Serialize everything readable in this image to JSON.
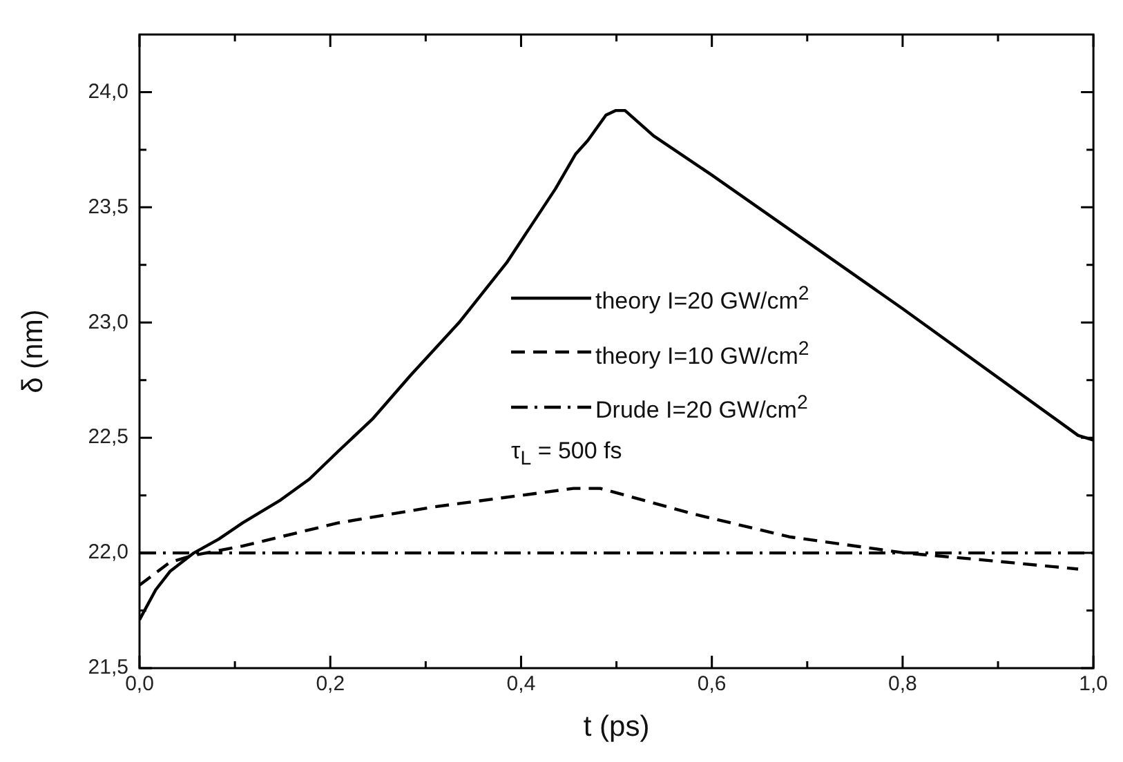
{
  "chart_data": {
    "type": "line",
    "xlabel": "t (ps)",
    "ylabel": "δ (nm)",
    "xlim": [
      0,
      1
    ],
    "ylim": [
      21.5,
      24.25
    ],
    "xticks": [
      {
        "value": 0,
        "label": "0,0"
      },
      {
        "value": 0.1,
        "label": null
      },
      {
        "value": 0.2,
        "label": "0,2"
      },
      {
        "value": 0.3,
        "label": null
      },
      {
        "value": 0.4,
        "label": "0,4"
      },
      {
        "value": 0.5,
        "label": null
      },
      {
        "value": 0.6,
        "label": "0,6"
      },
      {
        "value": 0.7,
        "label": null
      },
      {
        "value": 0.8,
        "label": "0,8"
      },
      {
        "value": 0.9,
        "label": null
      },
      {
        "value": 1,
        "label": "1,0"
      }
    ],
    "yticks": [
      {
        "value": 21.5,
        "label": "21,5"
      },
      {
        "value": 21.75,
        "label": null
      },
      {
        "value": 22,
        "label": "22,0"
      },
      {
        "value": 22.25,
        "label": null
      },
      {
        "value": 22.5,
        "label": "22,5"
      },
      {
        "value": 22.75,
        "label": null
      },
      {
        "value": 23,
        "label": "23,0"
      },
      {
        "value": 23.25,
        "label": null
      },
      {
        "value": 23.5,
        "label": "23,5"
      },
      {
        "value": 23.75,
        "label": null
      },
      {
        "value": 24,
        "label": "24,0"
      }
    ],
    "grid": false,
    "legend": "center",
    "marker": "none",
    "annotations": [
      "τ$_{L}$ = 500 fs"
    ],
    "series": [
      {
        "name": "theory I=20 GW/cm$^{2}$",
        "color": "#000000",
        "line_style": "solid",
        "x": [
          0,
          0.017,
          0.032,
          0.057,
          0.083,
          0.108,
          0.148,
          0.178,
          0.208,
          0.244,
          0.284,
          0.335,
          0.385,
          0.436,
          0.457,
          0.47,
          0.489,
          0.499,
          0.509,
          0.539,
          0.6,
          0.8,
          0.984,
          1
        ],
        "values": [
          21.71,
          21.84,
          21.92,
          22.0,
          22.06,
          22.13,
          22.23,
          22.32,
          22.44,
          22.58,
          22.77,
          23.0,
          23.26,
          23.58,
          23.73,
          23.79,
          23.9,
          23.92,
          23.92,
          23.81,
          23.64,
          23.06,
          22.51,
          22.49
        ]
      },
      {
        "name": "theory I=10 GW/cm$^{2}$",
        "color": "#000000",
        "line_style": "dashed",
        "x": [
          0,
          0.032,
          0.057,
          0.108,
          0.208,
          0.309,
          0.455,
          0.483,
          0.58,
          0.681,
          0.802,
          0.883,
          0.984
        ],
        "values": [
          21.86,
          21.96,
          21.99,
          22.03,
          22.13,
          22.2,
          22.28,
          22.28,
          22.17,
          22.07,
          22.0,
          21.97,
          21.93
        ]
      },
      {
        "name": "Drude  I=20 GW/cm$^{2}$",
        "color": "#000000",
        "line_style": "dashdot",
        "x": [
          0,
          1
        ],
        "values": [
          22.0,
          22.0
        ]
      }
    ]
  }
}
